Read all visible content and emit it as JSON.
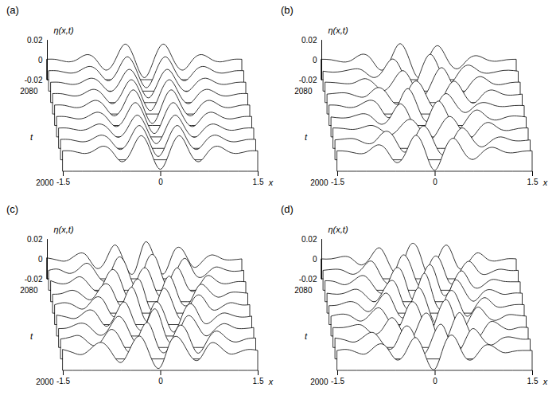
{
  "chart_data": [
    {
      "type": "surface",
      "title": "(a)",
      "x_label": "x",
      "y_label": "η(x,t)",
      "t_label": "t",
      "color": "#000000",
      "xlim": [
        -1.5,
        1.5
      ],
      "xticks": [
        -1.5,
        0,
        1.5
      ],
      "tlim": [
        2000,
        2080
      ],
      "tticks": [
        2000,
        2080
      ],
      "ylim": [
        -0.02,
        0.02
      ],
      "yticks": [
        -0.02,
        0,
        0.02
      ],
      "x": [
        -1.5,
        -1.35,
        -1.2,
        -1.05,
        -0.9,
        -0.75,
        -0.6,
        -0.45,
        -0.3,
        -0.15,
        0,
        0.15,
        0.3,
        0.45,
        0.6,
        0.75,
        0.9,
        1.05,
        1.2,
        1.35,
        1.5
      ],
      "t": [
        2000,
        2010,
        2020,
        2030,
        2040,
        2050,
        2060,
        2070,
        2080
      ],
      "eta": [
        [
          0.0005,
          0.0002,
          -0.002,
          -0.0003,
          0.005,
          0.0005,
          -0.0103,
          -0.0005,
          0.0157,
          0.0005,
          -0.018,
          0.0005,
          0.0157,
          -0.0005,
          -0.0103,
          0.0005,
          0.005,
          -0.0003,
          -0.002,
          0.0002,
          0.0005
        ],
        [
          0.0005,
          0.0002,
          -0.0018,
          -0.0003,
          0.0046,
          0.0005,
          -0.0095,
          -0.0005,
          0.0144,
          0.0005,
          -0.0166,
          0.0005,
          0.0144,
          -0.0005,
          -0.0095,
          0.0005,
          0.0046,
          -0.0003,
          -0.0018,
          0.0002,
          0.0005
        ],
        [
          0.0004,
          0.0002,
          -0.0017,
          -0.0003,
          0.0043,
          0.0004,
          -0.0088,
          -0.0004,
          0.0133,
          0.0004,
          -0.0153,
          0.0004,
          0.0133,
          -0.0004,
          -0.0088,
          0.0004,
          0.0043,
          -0.0003,
          -0.0017,
          0.0002,
          0.0004
        ],
        [
          0.0005,
          0.0002,
          -0.0018,
          -0.0003,
          0.0046,
          0.0005,
          -0.0095,
          -0.0005,
          0.0144,
          0.0005,
          -0.0166,
          0.0005,
          0.0144,
          -0.0005,
          -0.0095,
          0.0005,
          0.0046,
          -0.0003,
          -0.0018,
          0.0002,
          0.0005
        ],
        [
          0.0005,
          0.0002,
          -0.002,
          -0.0003,
          0.005,
          0.0005,
          -0.0103,
          -0.0005,
          0.0157,
          0.0005,
          -0.018,
          0.0005,
          0.0157,
          -0.0005,
          -0.0103,
          0.0005,
          0.005,
          -0.0003,
          -0.002,
          0.0002,
          0.0005
        ],
        [
          0.0005,
          0.0002,
          -0.0018,
          -0.0003,
          0.0046,
          0.0005,
          -0.0095,
          -0.0005,
          0.0144,
          0.0005,
          -0.0166,
          0.0005,
          0.0144,
          -0.0005,
          -0.0095,
          0.0005,
          0.0046,
          -0.0003,
          -0.0018,
          0.0002,
          0.0005
        ],
        [
          0.0004,
          0.0002,
          -0.0017,
          -0.0003,
          0.0043,
          0.0004,
          -0.0088,
          -0.0004,
          0.0133,
          0.0004,
          -0.0153,
          0.0004,
          0.0133,
          -0.0004,
          -0.0088,
          0.0004,
          0.0043,
          -0.0003,
          -0.0017,
          0.0002,
          0.0004
        ],
        [
          0.0005,
          0.0002,
          -0.0018,
          -0.0003,
          0.0046,
          0.0005,
          -0.0095,
          -0.0005,
          0.0144,
          0.0005,
          -0.0166,
          0.0005,
          0.0144,
          -0.0005,
          -0.0095,
          0.0005,
          0.0046,
          -0.0003,
          -0.0018,
          0.0002,
          0.0005
        ],
        [
          0.0005,
          0.0002,
          -0.002,
          -0.0003,
          0.005,
          0.0005,
          -0.0103,
          -0.0005,
          0.0157,
          0.0005,
          -0.018,
          0.0005,
          0.0157,
          -0.0005,
          -0.0103,
          0.0005,
          0.005,
          -0.0003,
          -0.002,
          0.0002,
          0.0005
        ]
      ]
    },
    {
      "type": "surface",
      "title": "(b)",
      "x_label": "x",
      "y_label": "η(x,t)",
      "t_label": "t",
      "color": "#000000",
      "xlim": [
        -1.5,
        1.5
      ],
      "xticks": [
        -1.5,
        0,
        1.5
      ],
      "tlim": [
        2000,
        2080
      ],
      "tticks": [
        2000,
        2080
      ],
      "ylim": [
        -0.02,
        0.02
      ],
      "yticks": [
        -0.02,
        0,
        0.02
      ],
      "x": [
        -1.5,
        -1.35,
        -1.2,
        -1.05,
        -0.9,
        -0.75,
        -0.6,
        -0.45,
        -0.3,
        -0.15,
        0,
        0.15,
        0.3,
        0.45,
        0.6,
        0.75,
        0.9,
        1.05,
        1.2,
        1.35,
        1.5
      ],
      "t": [
        2000,
        2010,
        2020,
        2030,
        2040,
        2050,
        2060,
        2070,
        2080
      ],
      "eta": [
        [
          0.0005,
          0,
          -0.002,
          -0.001,
          0.006,
          0.002,
          -0.011,
          -0.002,
          0.016,
          0.001,
          -0.019,
          0.001,
          0.013,
          -0.001,
          -0.008,
          0,
          0.004,
          0,
          -0.0015,
          0,
          0.0005
        ],
        [
          0,
          0.001,
          0.001,
          -0.003,
          -0.002,
          0.008,
          0.003,
          -0.012,
          -0.002,
          0.014,
          0.001,
          -0.015,
          -0.002,
          0.012,
          0.002,
          -0.007,
          -0.001,
          0.003,
          0,
          -0.001,
          0
        ],
        [
          0.0005,
          0,
          -0.001,
          0.001,
          0.003,
          -0.002,
          -0.006,
          0.003,
          0.009,
          -0.002,
          -0.011,
          0.002,
          0.012,
          0,
          -0.01,
          0,
          0.006,
          0,
          -0.002,
          0,
          0.0005
        ],
        [
          0,
          -0.001,
          0,
          0.003,
          0.001,
          -0.007,
          -0.001,
          0.013,
          0.001,
          -0.017,
          0,
          0.016,
          0.001,
          -0.012,
          -0.001,
          0.007,
          0,
          -0.003,
          0,
          0.001,
          0
        ],
        [
          0.0005,
          0,
          -0.002,
          0,
          0.005,
          0.001,
          -0.012,
          -0.001,
          0.017,
          0.001,
          -0.016,
          -0.001,
          0.012,
          0.001,
          -0.007,
          0,
          0.003,
          0,
          -0.001,
          0,
          0
        ],
        [
          0,
          0.001,
          0.001,
          -0.002,
          -0.002,
          0.006,
          0.002,
          -0.01,
          -0.002,
          0.013,
          0.002,
          -0.014,
          -0.001,
          0.013,
          0.001,
          -0.009,
          0,
          0.004,
          0,
          -0.001,
          0
        ],
        [
          0.0005,
          0,
          -0.001,
          0,
          0.004,
          -0.001,
          -0.008,
          0.002,
          0.012,
          -0.002,
          -0.014,
          0.002,
          0.015,
          -0.001,
          -0.011,
          0,
          0.006,
          0,
          -0.002,
          0,
          0.0005
        ],
        [
          0,
          -0.001,
          0,
          0.002,
          0.001,
          -0.006,
          -0.001,
          0.012,
          0.001,
          -0.018,
          0,
          0.017,
          0,
          -0.012,
          0,
          0.006,
          0,
          -0.002,
          0,
          0.001,
          0
        ],
        [
          0.0005,
          0,
          -0.002,
          -0.001,
          0.005,
          0.002,
          -0.01,
          -0.002,
          0.016,
          0.001,
          -0.018,
          0.001,
          0.014,
          -0.001,
          -0.009,
          0,
          0.004,
          0,
          -0.0015,
          0,
          0.0005
        ]
      ]
    },
    {
      "type": "surface",
      "title": "(c)",
      "x_label": "x",
      "y_label": "η(x,t)",
      "t_label": "t",
      "color": "#000000",
      "xlim": [
        -1.5,
        1.5
      ],
      "xticks": [
        -1.5,
        0,
        1.5
      ],
      "tlim": [
        2000,
        2080
      ],
      "tticks": [
        2000,
        2080
      ],
      "ylim": [
        -0.02,
        0.02
      ],
      "yticks": [
        -0.02,
        0,
        0.02
      ],
      "x": [
        -1.5,
        -1.35,
        -1.2,
        -1.05,
        -0.9,
        -0.75,
        -0.6,
        -0.45,
        -0.3,
        -0.15,
        0,
        0.15,
        0.3,
        0.45,
        0.6,
        0.75,
        0.9,
        1.05,
        1.2,
        1.35,
        1.5
      ],
      "t": [
        2000,
        2010,
        2020,
        2030,
        2040,
        2050,
        2060,
        2070,
        2080
      ],
      "eta": [
        [
          0.001,
          -0.002,
          -0.004,
          0.003,
          0.008,
          -0.002,
          -0.012,
          0.004,
          0.014,
          -0.006,
          -0.017,
          0.008,
          0.012,
          -0.004,
          -0.009,
          0.006,
          0.005,
          -0.003,
          -0.002,
          0.001,
          0
        ],
        [
          0,
          0.002,
          0.003,
          -0.005,
          -0.004,
          0.009,
          0.002,
          -0.013,
          0.003,
          0.016,
          -0.008,
          -0.01,
          0.012,
          0.006,
          -0.014,
          -0.002,
          0.008,
          0.001,
          -0.003,
          0,
          0.001
        ],
        [
          -0.001,
          0,
          0.004,
          0.002,
          -0.007,
          -0.003,
          0.011,
          0.001,
          -0.015,
          0.004,
          0.018,
          -0.009,
          -0.012,
          0.01,
          0.006,
          -0.008,
          -0.002,
          0.004,
          0,
          -0.001,
          0
        ],
        [
          0.001,
          -0.001,
          -0.002,
          0.005,
          0.003,
          -0.01,
          0.001,
          0.014,
          -0.007,
          -0.011,
          0.013,
          0.003,
          -0.016,
          0.004,
          0.011,
          -0.006,
          -0.004,
          0.003,
          0.001,
          -0.001,
          0
        ],
        [
          0,
          0.002,
          -0.001,
          -0.004,
          0.006,
          0.004,
          -0.012,
          0.002,
          0.017,
          -0.01,
          -0.013,
          0.015,
          0.004,
          -0.015,
          0.002,
          0.009,
          -0.004,
          -0.003,
          0.002,
          0,
          0
        ],
        [
          -0.001,
          0,
          0.003,
          -0.002,
          -0.006,
          0.007,
          0.005,
          -0.013,
          0.004,
          0.012,
          -0.016,
          -0.002,
          0.017,
          -0.006,
          -0.01,
          0.008,
          0.003,
          -0.004,
          0,
          0.001,
          0
        ],
        [
          0.001,
          -0.002,
          0,
          0.005,
          -0.004,
          -0.008,
          0.01,
          0.005,
          -0.016,
          0.006,
          0.011,
          -0.013,
          -0.004,
          0.014,
          -0.005,
          -0.007,
          0.006,
          0.001,
          -0.002,
          0,
          0
        ],
        [
          0,
          0.001,
          -0.003,
          0.001,
          0.007,
          -0.005,
          -0.009,
          0.012,
          0.003,
          -0.017,
          0.008,
          0.012,
          -0.014,
          -0.003,
          0.012,
          -0.004,
          -0.005,
          0.003,
          0.001,
          -0.001,
          0
        ],
        [
          0.001,
          -0.001,
          -0.002,
          0.004,
          0.004,
          -0.009,
          -0.002,
          0.014,
          -0.005,
          -0.013,
          0.016,
          0.002,
          -0.015,
          0.007,
          0.008,
          -0.008,
          -0.002,
          0.004,
          0,
          -0.001,
          0
        ]
      ]
    },
    {
      "type": "surface",
      "title": "(d)",
      "x_label": "x",
      "y_label": "η(x,t)",
      "t_label": "t",
      "color": "#000000",
      "xlim": [
        -1.5,
        1.5
      ],
      "xticks": [
        -1.5,
        0,
        1.5
      ],
      "tlim": [
        2000,
        2080
      ],
      "tticks": [
        2000,
        2080
      ],
      "ylim": [
        -0.02,
        0.02
      ],
      "yticks": [
        -0.02,
        0,
        0.02
      ],
      "x": [
        -1.5,
        -1.35,
        -1.2,
        -1.05,
        -0.9,
        -0.75,
        -0.6,
        -0.45,
        -0.3,
        -0.15,
        0,
        0.15,
        0.3,
        0.45,
        0.6,
        0.75,
        0.9,
        1.05,
        1.2,
        1.35,
        1.5
      ],
      "t": [
        2000,
        2010,
        2020,
        2030,
        2040,
        2050,
        2060,
        2070,
        2080
      ],
      "eta": [
        [
          0,
          0.001,
          -0.002,
          -0.003,
          0.005,
          0.004,
          -0.009,
          -0.002,
          0.013,
          -0.004,
          -0.019,
          0.006,
          0.014,
          -0.005,
          -0.008,
          0.004,
          0.004,
          -0.002,
          -0.001,
          0,
          0
        ],
        [
          0.001,
          -0.001,
          -0.003,
          0.003,
          0.006,
          -0.006,
          -0.008,
          0.011,
          0.006,
          -0.015,
          0.002,
          0.014,
          -0.009,
          -0.008,
          0.01,
          0.002,
          -0.006,
          0,
          0.002,
          0,
          0
        ],
        [
          0,
          0,
          0.002,
          0.002,
          -0.006,
          -0.002,
          0.01,
          -0.003,
          -0.012,
          0.009,
          0.01,
          -0.016,
          -0.003,
          0.015,
          -0.004,
          -0.009,
          0.005,
          0.003,
          -0.002,
          0,
          0
        ],
        [
          0,
          0.002,
          0,
          -0.005,
          0.002,
          0.008,
          -0.006,
          -0.01,
          0.012,
          0.006,
          -0.017,
          0.004,
          0.015,
          -0.01,
          -0.006,
          0.009,
          0,
          -0.004,
          0.001,
          0.001,
          0
        ],
        [
          -0.001,
          0,
          0.003,
          0,
          -0.007,
          0.003,
          0.011,
          -0.008,
          -0.009,
          0.016,
          0.002,
          -0.018,
          0.008,
          0.01,
          -0.011,
          -0.002,
          0.007,
          -0.001,
          -0.002,
          0,
          0
        ],
        [
          0,
          -0.001,
          0.001,
          0.004,
          -0.003,
          -0.008,
          0.007,
          0.01,
          -0.014,
          -0.004,
          0.02,
          -0.007,
          -0.013,
          0.012,
          0.004,
          -0.008,
          0.001,
          0.003,
          -0.001,
          0,
          0
        ],
        [
          0.001,
          0,
          -0.003,
          0.002,
          0.006,
          -0.005,
          -0.01,
          0.011,
          0.007,
          -0.018,
          0.005,
          0.015,
          -0.012,
          -0.004,
          0.011,
          -0.003,
          -0.005,
          0.002,
          0.001,
          0,
          0
        ],
        [
          0,
          0.001,
          0,
          -0.004,
          0.002,
          0.009,
          -0.007,
          -0.01,
          0.014,
          0.004,
          -0.016,
          0.008,
          0.01,
          -0.013,
          -0.002,
          0.009,
          -0.002,
          -0.003,
          0.001,
          0,
          0
        ],
        [
          0,
          0,
          0.002,
          0.001,
          -0.006,
          0.001,
          0.011,
          -0.006,
          -0.013,
          0.012,
          0.008,
          -0.017,
          0.001,
          0.013,
          -0.008,
          -0.005,
          0.006,
          0,
          -0.002,
          0,
          0
        ]
      ]
    }
  ]
}
